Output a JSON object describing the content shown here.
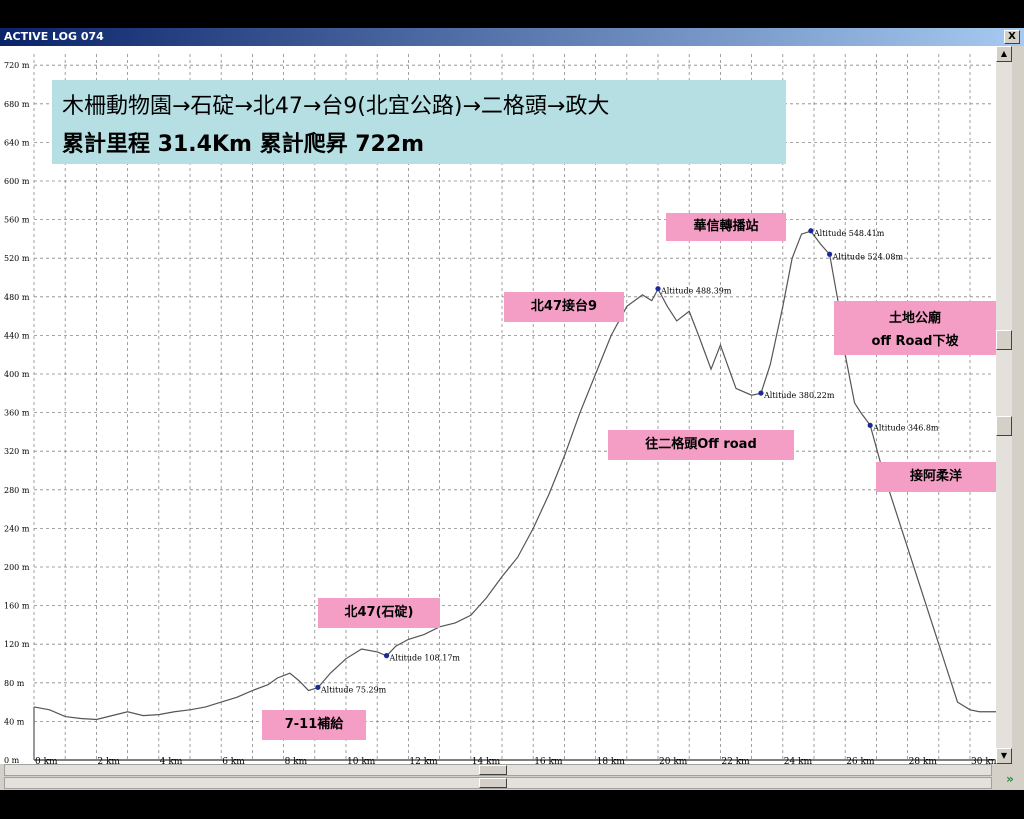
{
  "window": {
    "title": "ACTIVE LOG 074",
    "close_label": "X"
  },
  "info": {
    "route": "木柵動物園→石碇→北47→台9(北宜公路)→二格頭→政大",
    "stats": "累計里程 31.4Km  累計爬昇 722m"
  },
  "labels": {
    "seven_eleven": "7-11補給",
    "bei47": "北47(石碇)",
    "bei47_tai9": "北47接台9",
    "huaxin": "華信轉播站",
    "ergetou": "往二格頭Off road",
    "tudi_1": "土地公廟",
    "tudi_2": "off Road下坡",
    "jie": "接阿柔洋"
  },
  "chart_data": {
    "type": "line",
    "title": "",
    "xlabel": "",
    "ylabel": "",
    "xlim": [
      0,
      31
    ],
    "ylim": [
      0,
      740
    ],
    "x_ticks": [
      "0 km",
      "2 km",
      "4 km",
      "6 km",
      "8 km",
      "10 km",
      "12 km",
      "14 km",
      "16 km",
      "18 km",
      "20 km",
      "22 km",
      "24 km",
      "26 km",
      "28 km",
      "30 km"
    ],
    "y_ticks": [
      "0 m",
      "40 m",
      "80 m",
      "120 m",
      "160 m",
      "200 m",
      "240 m",
      "280 m",
      "320 m",
      "360 m",
      "400 m",
      "440 m",
      "480 m",
      "520 m",
      "560 m",
      "600 m",
      "640 m",
      "680 m",
      "720 m"
    ],
    "grid": true,
    "series": [
      {
        "x": [
          0,
          0.5,
          1,
          1.5,
          2,
          2.5,
          3,
          3.5,
          4,
          4.5,
          5,
          5.5,
          6,
          6.5,
          7,
          7.5,
          7.8,
          8.2,
          8.5,
          8.8,
          9.1,
          9.5,
          10,
          10.5,
          11,
          11.3,
          11.6,
          12,
          12.5,
          13,
          13.5,
          14,
          14.5,
          15,
          15.5,
          16,
          16.5,
          17,
          17.5,
          18,
          18.5,
          19,
          19.5,
          19.8,
          20,
          20.3,
          20.6,
          21,
          21.3,
          21.7,
          22,
          22.5,
          23,
          23.3,
          23.6,
          24,
          24.3,
          24.6,
          24.9,
          25.2,
          25.5,
          25.8,
          26,
          26.3,
          26.5,
          26.8,
          27.2,
          27.6,
          28,
          28.4,
          28.8,
          29.2,
          29.6,
          30,
          30.3,
          30.6,
          31
        ],
        "y": [
          55,
          52,
          45,
          43,
          42,
          46,
          50,
          46,
          47,
          50,
          52,
          55,
          60,
          65,
          72,
          78,
          85,
          90,
          82,
          72,
          75,
          90,
          105,
          115,
          112,
          108,
          118,
          125,
          130,
          138,
          142,
          150,
          168,
          190,
          210,
          240,
          275,
          315,
          360,
          400,
          440,
          470,
          482,
          476,
          488,
          470,
          455,
          465,
          440,
          405,
          430,
          385,
          378,
          380,
          410,
          470,
          520,
          545,
          548,
          535,
          524,
          470,
          420,
          370,
          360,
          347,
          300,
          260,
          220,
          180,
          140,
          100,
          60,
          52,
          50,
          50,
          50
        ],
        "annotations": [
          {
            "x": 9.1,
            "y": 75.29,
            "text": "Altitude  75.29m"
          },
          {
            "x": 11.3,
            "y": 108.17,
            "text": "Altitude  108.17m"
          },
          {
            "x": 20.0,
            "y": 488.39,
            "text": "Altitude  488.39m"
          },
          {
            "x": 23.3,
            "y": 380.22,
            "text": "Altitude  380.22m"
          },
          {
            "x": 24.9,
            "y": 548.41,
            "text": "Altitude  548.41m"
          },
          {
            "x": 25.5,
            "y": 524.08,
            "text": "Altitude  524.08m"
          },
          {
            "x": 26.8,
            "y": 346.8,
            "text": "Altitude  346.8m"
          }
        ]
      }
    ]
  }
}
